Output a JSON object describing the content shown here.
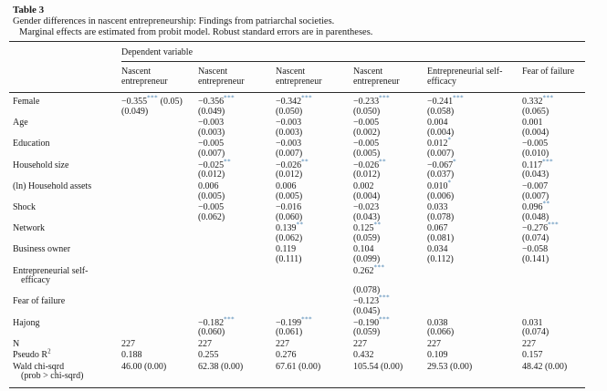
{
  "accent_star_color": "#3a78ab",
  "header": {
    "title": "Table 3",
    "caption": "Gender differences in nascent entrepreneurship: Findings from patriarchal societies.",
    "subcaption": "Marginal effects are estimated from probit model. Robust standard errors are in parentheses."
  },
  "table": {
    "spanner": "Dependent variable",
    "columns": [
      [
        "Nascent",
        "entrepreneur"
      ],
      [
        "Nascent",
        "entrepreneur"
      ],
      [
        "Nascent",
        "entrepreneur"
      ],
      [
        "Nascent",
        "entrepreneur"
      ],
      [
        "Entrepreneurial self-",
        "efficacy"
      ],
      [
        "Fear of failure"
      ]
    ],
    "rows": [
      {
        "label": "Female",
        "cells": [
          {
            "lines": [
              {
                "t": "−0.355",
                "s": "***",
                "a": " (0.05)"
              },
              {
                "t": "(0.049)"
              }
            ]
          },
          {
            "lines": [
              {
                "t": "−0.356",
                "s": "***"
              },
              {
                "t": "(0.049)"
              }
            ]
          },
          {
            "lines": [
              {
                "t": "−0.342",
                "s": "***"
              },
              {
                "t": "(0.050)"
              }
            ]
          },
          {
            "lines": [
              {
                "t": "−0.233",
                "s": "***"
              },
              {
                "t": "(0.050)"
              }
            ]
          },
          {
            "lines": [
              {
                "t": "−0.241",
                "s": "***"
              },
              {
                "t": "(0.058)"
              }
            ]
          },
          {
            "lines": [
              {
                "t": "0.332",
                "s": "***"
              },
              {
                "t": "(0.065)"
              }
            ]
          }
        ]
      },
      {
        "label": "Age",
        "cells": [
          null,
          {
            "lines": [
              {
                "t": "−0.003"
              },
              {
                "t": "(0.003)"
              }
            ]
          },
          {
            "lines": [
              {
                "t": "−0.003"
              },
              {
                "t": "(0.003)"
              }
            ]
          },
          {
            "lines": [
              {
                "t": "−0.005"
              },
              {
                "t": "(0.002)"
              }
            ]
          },
          {
            "lines": [
              {
                "t": "0.004"
              },
              {
                "t": "(0.004)"
              }
            ]
          },
          {
            "lines": [
              {
                "t": "0.001"
              },
              {
                "t": "(0.004)"
              }
            ]
          }
        ]
      },
      {
        "label": "Education",
        "cells": [
          null,
          {
            "lines": [
              {
                "t": "−0.005"
              },
              {
                "t": "(0.007)"
              }
            ]
          },
          {
            "lines": [
              {
                "t": "−0.003"
              },
              {
                "t": "(0.007)"
              }
            ]
          },
          {
            "lines": [
              {
                "t": "−0.005"
              },
              {
                "t": "(0.005)"
              }
            ]
          },
          {
            "lines": [
              {
                "t": "0.012",
                "s": "*"
              },
              {
                "t": "(0.007)"
              }
            ]
          },
          {
            "lines": [
              {
                "t": "−0.005"
              },
              {
                "t": "(0.010)"
              }
            ]
          }
        ]
      },
      {
        "label": "Household size",
        "cells": [
          null,
          {
            "lines": [
              {
                "t": "−0.025",
                "s": "**"
              },
              {
                "t": "(0.012)"
              }
            ]
          },
          {
            "lines": [
              {
                "t": "−0.026",
                "s": "**"
              },
              {
                "t": "(0.012)"
              }
            ]
          },
          {
            "lines": [
              {
                "t": "−0.026",
                "s": "**"
              },
              {
                "t": "(0.012)"
              }
            ]
          },
          {
            "lines": [
              {
                "t": "−0.067",
                "s": "*"
              },
              {
                "t": "(0.037)"
              }
            ]
          },
          {
            "lines": [
              {
                "t": "0.117",
                "s": "***"
              },
              {
                "t": "(0.043)"
              }
            ]
          }
        ]
      },
      {
        "label": "(ln) Household assets",
        "cells": [
          null,
          {
            "lines": [
              {
                "t": "0.006"
              },
              {
                "t": "(0.005)"
              }
            ]
          },
          {
            "lines": [
              {
                "t": "0.006"
              },
              {
                "t": "(0.005)"
              }
            ]
          },
          {
            "lines": [
              {
                "t": "0.002"
              },
              {
                "t": "(0.004)"
              }
            ]
          },
          {
            "lines": [
              {
                "t": "0.010",
                "s": "*"
              },
              {
                "t": "(0.006)"
              }
            ]
          },
          {
            "lines": [
              {
                "t": "−0.007"
              },
              {
                "t": "(0.007)"
              }
            ]
          }
        ]
      },
      {
        "label": "Shock",
        "cells": [
          null,
          {
            "lines": [
              {
                "t": "−0.005"
              },
              {
                "t": "(0.062)"
              }
            ]
          },
          {
            "lines": [
              {
                "t": "−0.016"
              },
              {
                "t": "(0.060)"
              }
            ]
          },
          {
            "lines": [
              {
                "t": "−0.023"
              },
              {
                "t": "(0.043)"
              }
            ]
          },
          {
            "lines": [
              {
                "t": "0.033"
              },
              {
                "t": "(0.078)"
              }
            ]
          },
          {
            "lines": [
              {
                "t": "0.096",
                "s": "**"
              },
              {
                "t": "(0.048)"
              }
            ]
          }
        ]
      },
      {
        "label": "Network",
        "cells": [
          null,
          null,
          {
            "lines": [
              {
                "t": "0.139",
                "s": "**"
              },
              {
                "t": "(0.062)"
              }
            ]
          },
          {
            "lines": [
              {
                "t": "0.125",
                "s": "**"
              },
              {
                "t": "(0.059)"
              }
            ]
          },
          {
            "lines": [
              {
                "t": "0.067"
              },
              {
                "t": "(0.081)"
              }
            ]
          },
          {
            "lines": [
              {
                "t": "−0.276",
                "s": "***"
              },
              {
                "t": "(0.074)"
              }
            ]
          }
        ]
      },
      {
        "label": "Business owner",
        "cells": [
          null,
          null,
          {
            "lines": [
              {
                "t": "0.119"
              },
              {
                "t": "(0.111)"
              }
            ]
          },
          {
            "lines": [
              {
                "t": "0.104"
              },
              {
                "t": "(0.099)"
              }
            ]
          },
          {
            "lines": [
              {
                "t": "0.034"
              },
              {
                "t": "(0.112)"
              }
            ]
          },
          {
            "lines": [
              {
                "t": "−0.058"
              },
              {
                "t": "(0.141)"
              }
            ]
          }
        ]
      },
      {
        "label": "Entrepreneurial self-",
        "label2": "efficacy",
        "cells": [
          null,
          null,
          null,
          {
            "lines": [
              {
                "t": "0.262",
                "s": "***"
              },
              {
                "t": ""
              },
              {
                "t": "(0.078)"
              }
            ]
          },
          null,
          null
        ]
      },
      {
        "label": "Fear of failure",
        "cells": [
          null,
          null,
          null,
          {
            "lines": [
              {
                "t": "−0.123",
                "s": "***"
              },
              {
                "t": "(0.045)"
              }
            ]
          },
          null,
          null
        ]
      },
      {
        "label": "Hajong",
        "cells": [
          null,
          {
            "lines": [
              {
                "t": "−0.182",
                "s": "***"
              },
              {
                "t": "(0.060)"
              }
            ]
          },
          {
            "lines": [
              {
                "t": "−0.199",
                "s": "***"
              },
              {
                "t": "(0.061)"
              }
            ]
          },
          {
            "lines": [
              {
                "t": "−0.190",
                "s": "***"
              },
              {
                "t": "(0.059)"
              }
            ]
          },
          {
            "lines": [
              {
                "t": "0.038"
              },
              {
                "t": "(0.066)"
              }
            ]
          },
          {
            "lines": [
              {
                "t": "0.031"
              },
              {
                "t": "(0.074)"
              }
            ]
          }
        ]
      },
      {
        "label": "N",
        "cells": [
          {
            "lines": [
              {
                "t": "227"
              }
            ]
          },
          {
            "lines": [
              {
                "t": "227"
              }
            ]
          },
          {
            "lines": [
              {
                "t": "227"
              }
            ]
          },
          {
            "lines": [
              {
                "t": "227"
              }
            ]
          },
          {
            "lines": [
              {
                "t": "227"
              }
            ]
          },
          {
            "lines": [
              {
                "t": "227"
              }
            ]
          }
        ]
      },
      {
        "label": "Pseudo R",
        "label_sup": "2",
        "cells": [
          {
            "lines": [
              {
                "t": "0.188"
              }
            ]
          },
          {
            "lines": [
              {
                "t": "0.255"
              }
            ]
          },
          {
            "lines": [
              {
                "t": "0.276"
              }
            ]
          },
          {
            "lines": [
              {
                "t": "0.432"
              }
            ]
          },
          {
            "lines": [
              {
                "t": "0.109"
              }
            ]
          },
          {
            "lines": [
              {
                "t": "0.157"
              }
            ]
          }
        ]
      },
      {
        "label": "Wald chi-sqrd",
        "label2": "(prob > chi-sqrd)",
        "cells": [
          {
            "lines": [
              {
                "t": "46.00 (0.00)"
              }
            ]
          },
          {
            "lines": [
              {
                "t": "62.38 (0.00)"
              }
            ]
          },
          {
            "lines": [
              {
                "t": "67.61 (0.00)"
              }
            ]
          },
          {
            "lines": [
              {
                "t": "105.54 (0.00)"
              }
            ]
          },
          {
            "lines": [
              {
                "t": "29.53 (0.00)"
              }
            ]
          },
          {
            "lines": [
              {
                "t": "48.42 (0.00)"
              }
            ]
          }
        ]
      }
    ]
  }
}
